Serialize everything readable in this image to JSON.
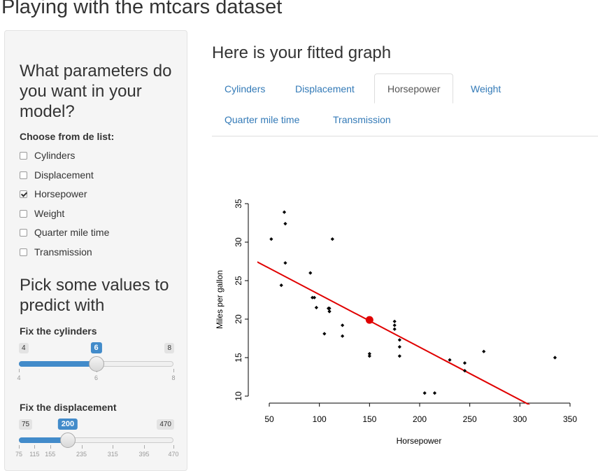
{
  "page": {
    "title": "Playing with the mtcars dataset"
  },
  "sidebar": {
    "heading_model": "What parameters do you want in your model?",
    "list_label": "Choose from de list:",
    "checkboxes": [
      {
        "label": "Cylinders",
        "checked": false
      },
      {
        "label": "Displacement",
        "checked": false
      },
      {
        "label": "Horsepower",
        "checked": true
      },
      {
        "label": "Weight",
        "checked": false
      },
      {
        "label": "Quarter mile time",
        "checked": false
      },
      {
        "label": "Transmission",
        "checked": false
      }
    ],
    "heading_values": "Pick some values to predict with",
    "sliders": [
      {
        "label": "Fix the cylinders",
        "min": 4,
        "max": 8,
        "value": 6,
        "min_label": "4",
        "max_label": "8",
        "value_label": "6",
        "ticks": [
          "4",
          "6",
          "8"
        ]
      },
      {
        "label": "Fix the displacement",
        "min": 75,
        "max": 470,
        "value": 200,
        "min_label": "75",
        "max_label": "470",
        "value_label": "200",
        "ticks": [
          "75",
          "115",
          "155",
          "235",
          "315",
          "395",
          "470"
        ]
      }
    ]
  },
  "main": {
    "title": "Here is your fitted graph",
    "tabs": [
      {
        "label": "Cylinders",
        "active": false
      },
      {
        "label": "Displacement",
        "active": false
      },
      {
        "label": "Horsepower",
        "active": true
      },
      {
        "label": "Weight",
        "active": false
      },
      {
        "label": "Quarter mile time",
        "active": false
      },
      {
        "label": "Transmission",
        "active": false
      }
    ]
  },
  "chart_data": {
    "type": "scatter",
    "xlabel": "Horsepower",
    "ylabel": "Miles per gallon",
    "xlim": [
      40,
      350
    ],
    "ylim": [
      10,
      35
    ],
    "xticks": [
      50,
      100,
      150,
      200,
      250,
      300,
      350
    ],
    "yticks": [
      10,
      15,
      20,
      25,
      30,
      35
    ],
    "points": [
      {
        "x": 110,
        "y": 21.0
      },
      {
        "x": 110,
        "y": 21.0
      },
      {
        "x": 93,
        "y": 22.8
      },
      {
        "x": 110,
        "y": 21.4
      },
      {
        "x": 175,
        "y": 18.7
      },
      {
        "x": 105,
        "y": 18.1
      },
      {
        "x": 245,
        "y": 14.3
      },
      {
        "x": 62,
        "y": 24.4
      },
      {
        "x": 95,
        "y": 22.8
      },
      {
        "x": 123,
        "y": 19.2
      },
      {
        "x": 123,
        "y": 17.8
      },
      {
        "x": 180,
        "y": 16.4
      },
      {
        "x": 180,
        "y": 17.3
      },
      {
        "x": 180,
        "y": 15.2
      },
      {
        "x": 205,
        "y": 10.4
      },
      {
        "x": 215,
        "y": 10.4
      },
      {
        "x": 230,
        "y": 14.7
      },
      {
        "x": 66,
        "y": 32.4
      },
      {
        "x": 52,
        "y": 30.4
      },
      {
        "x": 65,
        "y": 33.9
      },
      {
        "x": 97,
        "y": 21.5
      },
      {
        "x": 150,
        "y": 15.5
      },
      {
        "x": 150,
        "y": 15.2
      },
      {
        "x": 245,
        "y": 13.3
      },
      {
        "x": 175,
        "y": 19.2
      },
      {
        "x": 66,
        "y": 27.3
      },
      {
        "x": 91,
        "y": 26.0
      },
      {
        "x": 113,
        "y": 30.4
      },
      {
        "x": 264,
        "y": 15.8
      },
      {
        "x": 175,
        "y": 19.7
      },
      {
        "x": 335,
        "y": 15.0
      },
      {
        "x": 109,
        "y": 21.4
      }
    ],
    "fit_line": {
      "x": [
        37,
        312
      ],
      "y": [
        27.5,
        8.7
      ],
      "color": "#e00000"
    },
    "prediction": {
      "x": 150,
      "y": 19.9,
      "color": "#e00000"
    },
    "point_color": "#000000"
  }
}
